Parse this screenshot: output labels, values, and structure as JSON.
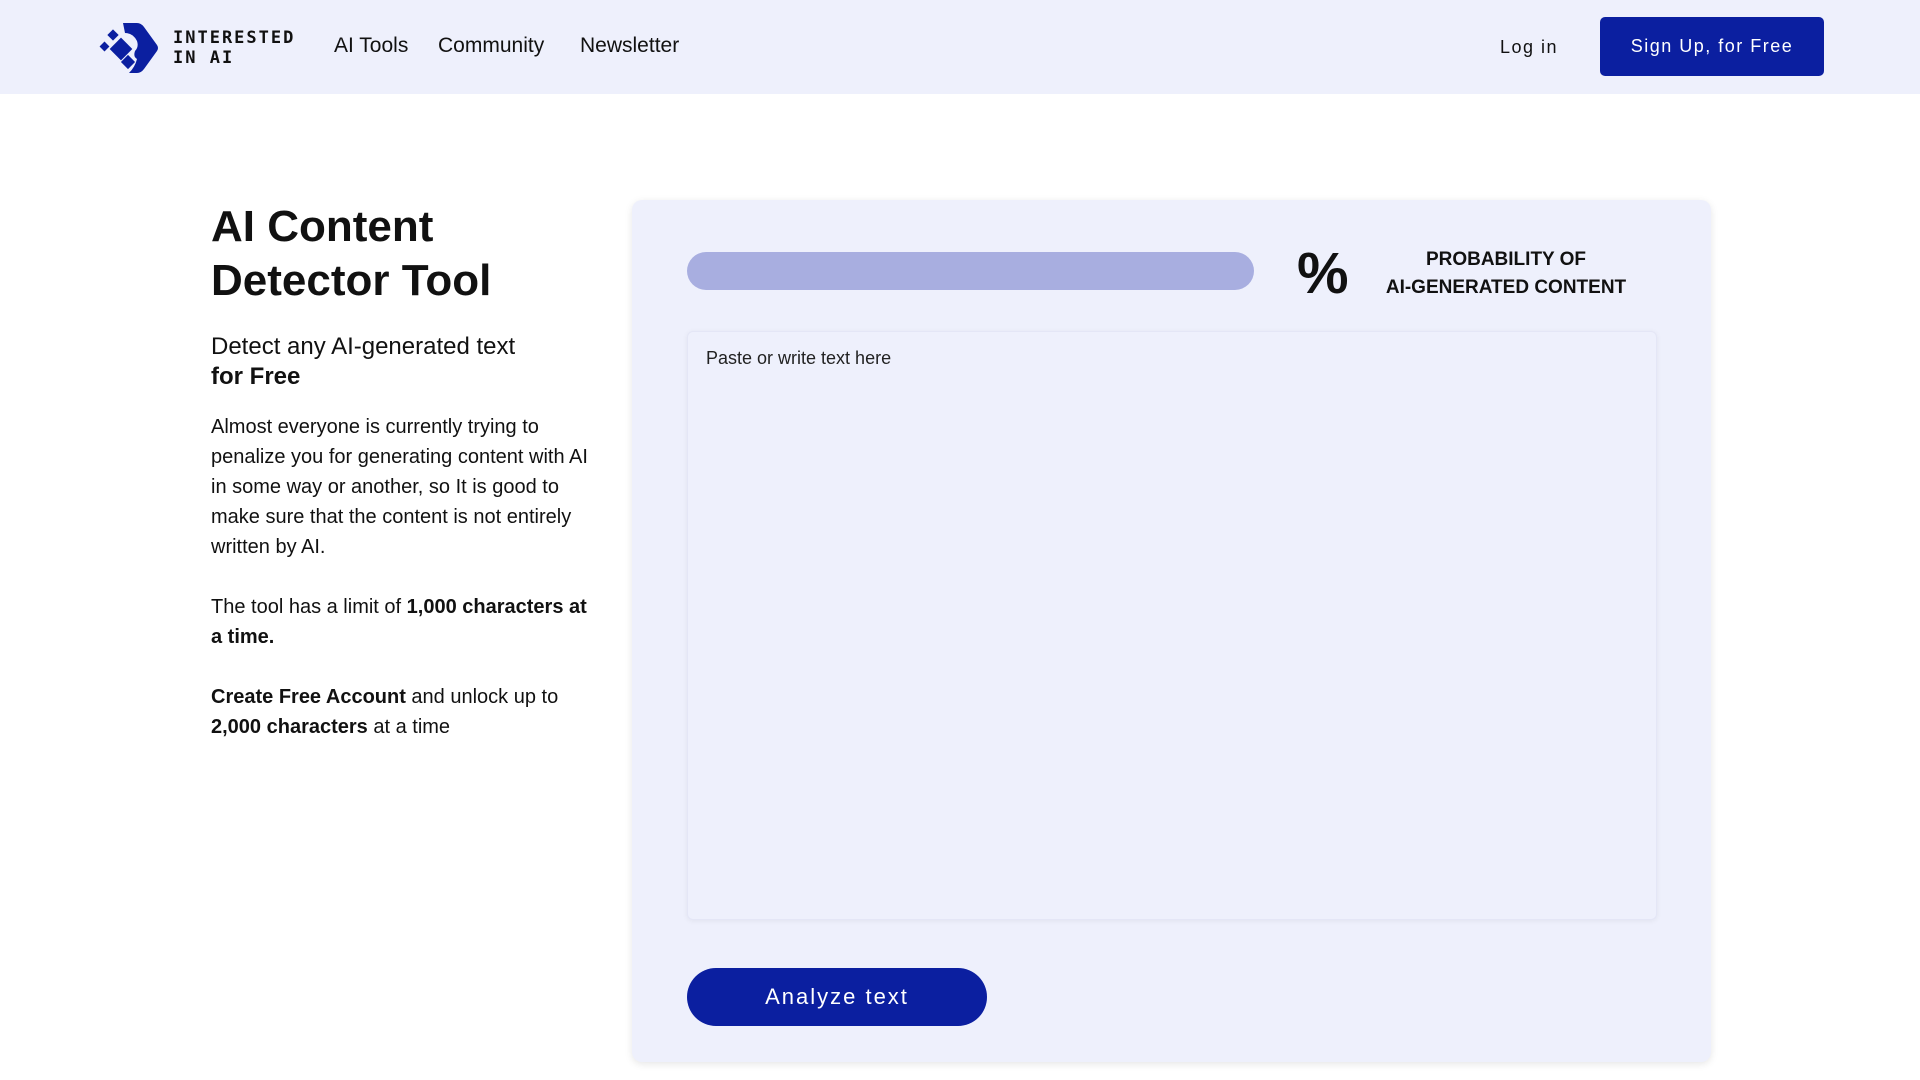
{
  "header": {
    "logo_text_line1": "INTERESTED",
    "logo_text_line2": "IN AI",
    "nav": [
      "AI Tools",
      "Community",
      "Newsletter"
    ],
    "login": "Log in",
    "signup": "Sign Up, for Free"
  },
  "intro": {
    "title": "AI Content Detector Tool",
    "subtitle": "Detect any AI-generated text",
    "subtitle_bold": "for Free",
    "para1": "Almost everyone is currently trying to penalize you for generating content with AI in some way or another, so It is good to make sure that the content is not entirely written by AI.",
    "para2_pre": "The tool has a limit of ",
    "para2_bold": "1,000 characters at a time.",
    "para3_bold1": "Create Free Account",
    "para3_mid": " and unlock up to ",
    "para3_bold2": "2,000 characters",
    "para3_post": " at a time"
  },
  "detector": {
    "probability_percent": 0,
    "percent_sign": "%",
    "label_line1": "PROBABILITY OF",
    "label_line2": "AI-GENERATED CONTENT",
    "placeholder": "Paste or write text here",
    "value": "",
    "analyze": "Analyze text"
  },
  "colors": {
    "brand": "#0b1fa0",
    "header_bg": "#eef0fc",
    "bar_track": "#a8aee0"
  }
}
